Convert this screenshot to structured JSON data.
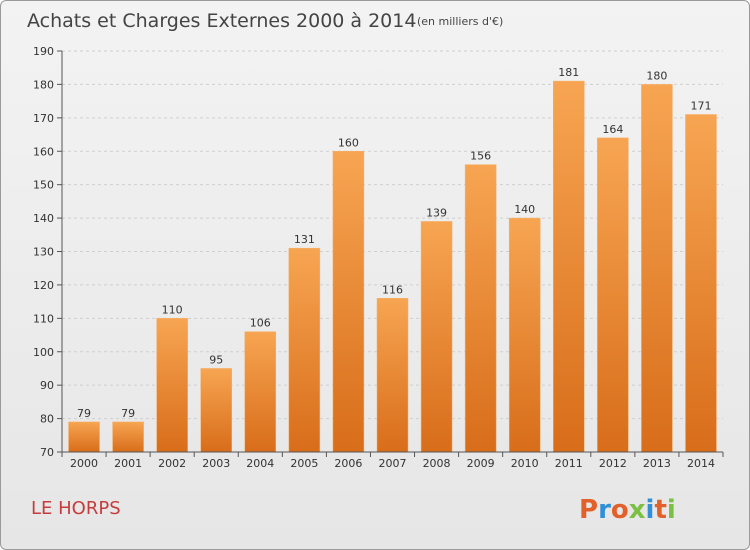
{
  "chart_data": {
    "type": "bar",
    "title": "Achats et Charges Externes 2000 à 2014",
    "subtitle": "(en milliers d'€)",
    "categories": [
      "2000",
      "2001",
      "2002",
      "2003",
      "2004",
      "2005",
      "2006",
      "2007",
      "2008",
      "2009",
      "2010",
      "2011",
      "2012",
      "2013",
      "2014"
    ],
    "values": [
      79,
      79,
      110,
      95,
      106,
      131,
      160,
      116,
      139,
      156,
      140,
      181,
      164,
      180,
      171
    ],
    "ylim": [
      70,
      190
    ],
    "yticks": [
      70,
      80,
      90,
      100,
      110,
      120,
      130,
      140,
      150,
      160,
      170,
      180,
      190
    ],
    "grid": true,
    "bar_color": "#f0902e"
  },
  "footer": {
    "commune": "LE HORPS",
    "brand": [
      "P",
      "r",
      "o",
      "x",
      "i",
      "t",
      "i"
    ],
    "brand_colors": [
      "#e2602a",
      "#2f8fd8",
      "#e2602a",
      "#7bc043",
      "#2f8fd8",
      "#e2602a",
      "#7bc043"
    ]
  }
}
